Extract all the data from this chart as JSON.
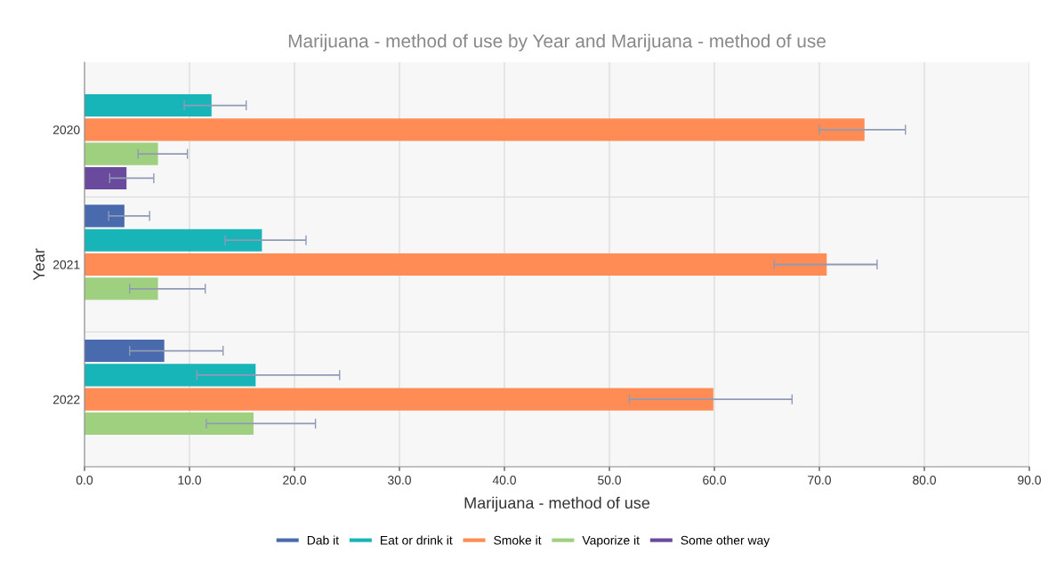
{
  "chart_data": {
    "type": "bar",
    "orientation": "horizontal",
    "title": "Marijuana - method of use by Year and Marijuana - method of use",
    "xlabel": "Marijuana - method of use",
    "ylabel": "Year",
    "categories": [
      "2020",
      "2021",
      "2022"
    ],
    "series": [
      {
        "name": "Dab it",
        "color": "#4a6aae",
        "values": [
          null,
          3.8,
          7.6
        ],
        "errors": [
          null,
          [
            2.3,
            6.2
          ],
          [
            4.3,
            13.2
          ]
        ]
      },
      {
        "name": "Eat or drink it",
        "color": "#17b5b8",
        "values": [
          12.1,
          16.9,
          16.3
        ],
        "errors": [
          [
            9.5,
            15.4
          ],
          [
            13.4,
            21.1
          ],
          [
            10.7,
            24.3
          ]
        ]
      },
      {
        "name": "Smoke it",
        "color": "#ff8c55",
        "values": [
          74.3,
          70.7,
          59.9
        ],
        "errors": [
          [
            70.0,
            78.2
          ],
          [
            65.7,
            75.5
          ],
          [
            51.9,
            67.4
          ]
        ]
      },
      {
        "name": "Vaporize it",
        "color": "#9fd07f",
        "values": [
          7.0,
          7.0,
          16.1
        ],
        "errors": [
          [
            5.1,
            9.8
          ],
          [
            4.3,
            11.5
          ],
          [
            11.6,
            22.0
          ]
        ]
      },
      {
        "name": "Some other way",
        "color": "#6a4a9c",
        "values": [
          4.0,
          null,
          null
        ],
        "errors": [
          [
            2.4,
            6.6
          ],
          null,
          null
        ]
      }
    ],
    "xlim": [
      0,
      90
    ],
    "xticks": [
      {
        "value": 0,
        "label": "0.0"
      },
      {
        "value": 10,
        "label": "10.0"
      },
      {
        "value": 20,
        "label": "20.0"
      },
      {
        "value": 30,
        "label": "30.0"
      },
      {
        "value": 40,
        "label": "40.0"
      },
      {
        "value": 50,
        "label": "50.0"
      },
      {
        "value": 60,
        "label": "60.0"
      },
      {
        "value": 70,
        "label": "70.0"
      },
      {
        "value": 80,
        "label": "80.0"
      },
      {
        "value": 90,
        "label": "90.0"
      }
    ],
    "grid": true,
    "legend": "bottom"
  }
}
